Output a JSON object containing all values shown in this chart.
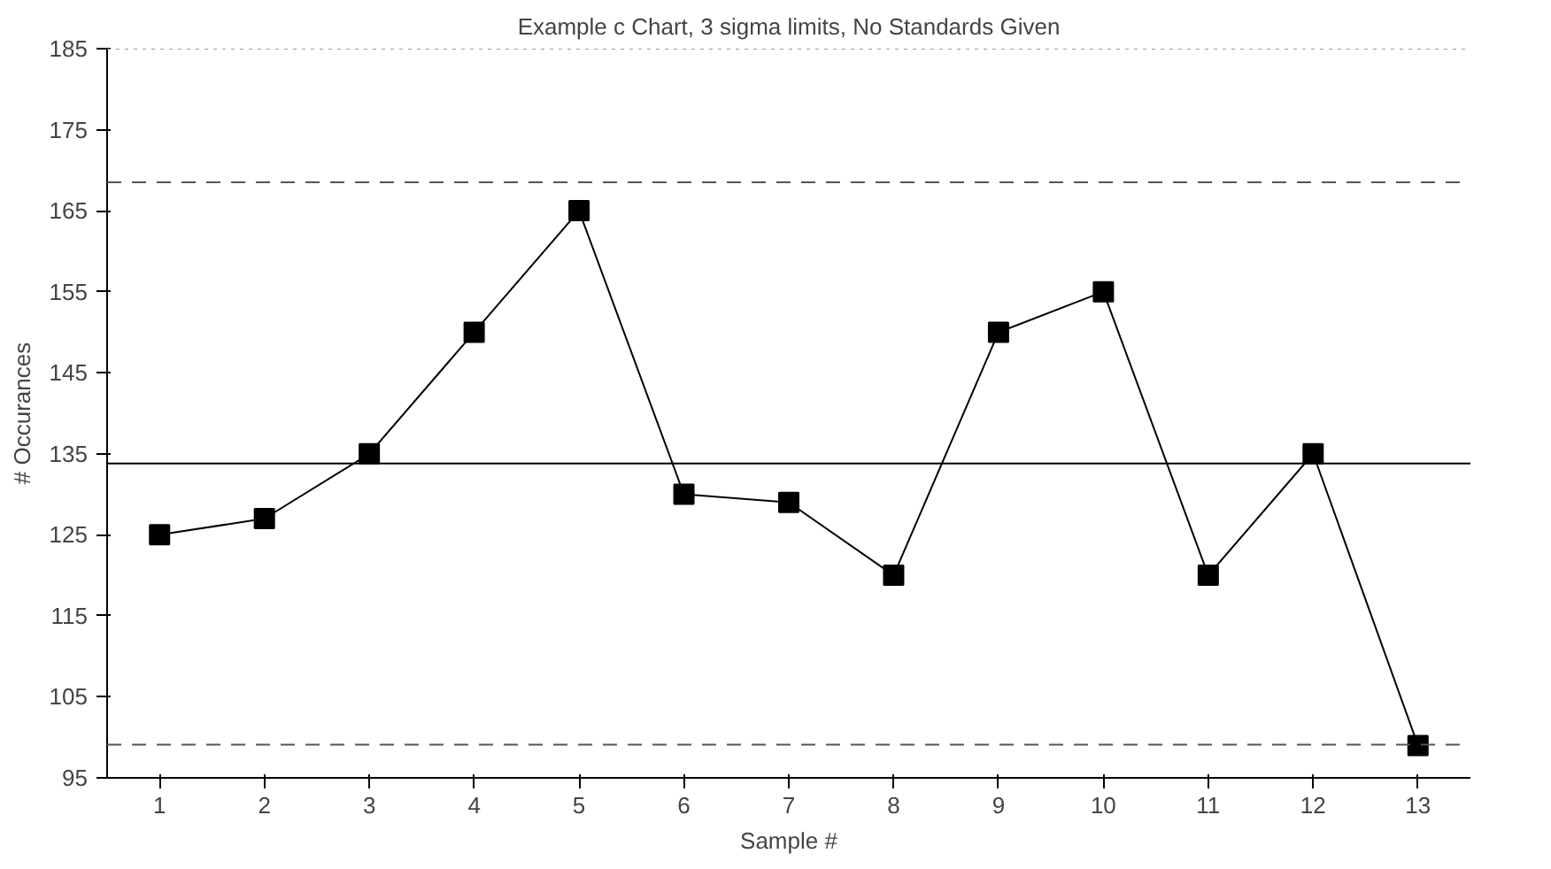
{
  "chart_data": {
    "type": "line",
    "title": "Example c Chart, 3 sigma limits, No Standards Given",
    "xlabel": "Sample #",
    "ylabel": "# Occurances",
    "x": [
      1,
      2,
      3,
      4,
      5,
      6,
      7,
      8,
      9,
      10,
      11,
      12,
      13
    ],
    "series": [
      {
        "color": "#000000",
        "values": [
          125,
          127,
          135,
          150,
          165,
          130,
          129,
          120,
          150,
          155,
          120,
          135,
          99
        ]
      }
    ],
    "xlim": [
      0.5,
      13.5
    ],
    "xticks": [
      1,
      2,
      3,
      4,
      5,
      6,
      7,
      8,
      9,
      10,
      11,
      12,
      13
    ],
    "ylim": [
      95,
      185
    ],
    "yticks": [
      95,
      105,
      115,
      125,
      135,
      145,
      155,
      165,
      175,
      185
    ],
    "ref_lines": [
      {
        "axis": "y",
        "value": 168.5,
        "color": "#555555",
        "line_style": "dashed"
      },
      {
        "axis": "y",
        "value": 133.8,
        "color": "#000000",
        "line_style": "solid"
      },
      {
        "axis": "y",
        "value": 99.1,
        "color": "#555555",
        "line_style": "dashed"
      },
      {
        "axis": "y",
        "value": 185,
        "color": "#999999",
        "line_style": "dotted"
      }
    ],
    "grid": false,
    "marker": "square",
    "line_style": "solid"
  }
}
